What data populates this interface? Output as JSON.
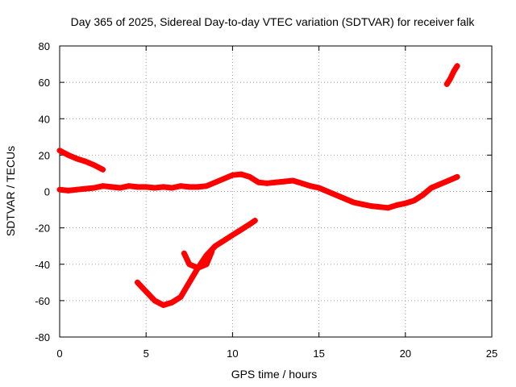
{
  "chart_data": {
    "type": "scatter",
    "title": "Day 365 of 2025, Sidereal Day-to-day VTEC variation (SDTVAR) for receiver falk",
    "xlabel": "GPS time / hours",
    "ylabel": "SDTVAR / TECUs",
    "xlim": [
      0,
      25
    ],
    "ylim": [
      -80,
      80
    ],
    "xticks": [
      0,
      5,
      10,
      15,
      20,
      25
    ],
    "yticks": [
      -80,
      -60,
      -40,
      -20,
      0,
      20,
      40,
      60,
      80
    ],
    "xtick_labels": [
      "0",
      "5",
      "10",
      "15",
      "20",
      "25"
    ],
    "ytick_labels": [
      "-80",
      "-60",
      "-40",
      "-20",
      "0",
      "20",
      "40",
      "60",
      "80"
    ],
    "grid": true,
    "legend": "none",
    "marker": "plus",
    "series_color": "#ff0000",
    "series": [
      {
        "name": "track-main",
        "x": [
          0.0,
          0.5,
          1.0,
          1.5,
          2.0,
          2.5,
          3.0,
          3.5,
          4.0,
          4.5,
          5.0,
          5.5,
          6.0,
          6.5,
          7.0,
          7.5,
          8.0,
          8.5,
          9.0,
          9.5,
          10.0,
          10.5,
          11.0,
          11.5,
          12.0,
          12.5,
          13.0,
          13.5,
          14.0,
          14.5,
          15.0,
          15.5,
          16.0,
          16.5,
          17.0,
          17.5,
          18.0,
          18.5,
          19.0,
          19.5,
          20.0,
          20.5,
          21.0,
          21.5,
          22.0,
          22.5,
          23.0
        ],
        "y": [
          1.0,
          0.5,
          1.0,
          1.5,
          2.0,
          3.0,
          2.5,
          2.0,
          3.0,
          2.5,
          2.5,
          2.0,
          2.5,
          2.0,
          3.0,
          2.5,
          2.5,
          3.0,
          5.0,
          7.0,
          9.0,
          9.5,
          8.0,
          5.0,
          4.5,
          5.0,
          5.5,
          6.0,
          4.5,
          3.0,
          2.0,
          0.0,
          -2.0,
          -4.0,
          -6.0,
          -7.0,
          -8.0,
          -8.5,
          -9.0,
          -7.5,
          -6.5,
          -5.0,
          -2.0,
          2.0,
          4.0,
          6.0,
          8.0
        ]
      },
      {
        "name": "track-early",
        "x": [
          0.0,
          0.5,
          1.0,
          1.5,
          2.0,
          2.5
        ],
        "y": [
          22.5,
          20.0,
          18.0,
          16.5,
          14.5,
          12.0
        ]
      },
      {
        "name": "track-morning-dip",
        "x": [
          4.5,
          5.0,
          5.5,
          6.0,
          6.5,
          7.0,
          7.5,
          8.0,
          8.5,
          9.0,
          9.5,
          10.0,
          10.5,
          11.0,
          11.3
        ],
        "y": [
          -50.0,
          -55.0,
          -60.0,
          -62.5,
          -61.0,
          -58.0,
          -50.0,
          -42.0,
          -35.0,
          -30.0,
          -27.0,
          -24.0,
          -21.0,
          -18.0,
          -16.0
        ]
      },
      {
        "name": "track-mid",
        "x": [
          7.2,
          7.5,
          8.0,
          8.5,
          8.8
        ],
        "y": [
          -34.0,
          -40.0,
          -42.0,
          -40.0,
          -33.0
        ]
      },
      {
        "name": "track-late",
        "x": [
          22.4,
          22.6,
          22.8,
          23.0
        ],
        "y": [
          59.0,
          62.0,
          66.0,
          69.0
        ]
      }
    ]
  }
}
